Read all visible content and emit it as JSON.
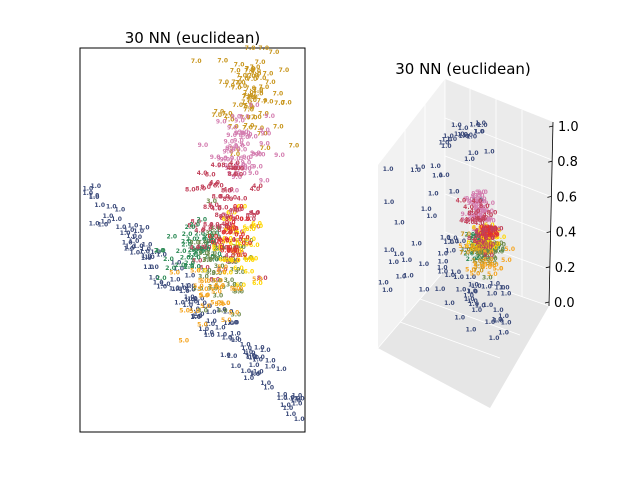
{
  "chart_data": [
    {
      "type": "scatter",
      "title": "30 NN (euclidean)",
      "marker": "text-label",
      "x_ticks_shown": false,
      "y_ticks_shown": false,
      "class_colors": {
        "1.0": "#3b4a7a",
        "2.0": "#2e8b57",
        "3.0": "#6e8a4a",
        "4.0": "#c2415a",
        "5.0": "#f5a623",
        "6.0": "#ffd700",
        "7.0": "#c8961e",
        "8.0": "#c2415a",
        "9.0": "#d47eb0",
        "0.0": "#e03030"
      },
      "clusters": [
        {
          "label": "7.0",
          "cx": 0.76,
          "cy": 0.88,
          "sx": 0.07,
          "sy": 0.07,
          "n": 70
        },
        {
          "label": "9.0",
          "cx": 0.72,
          "cy": 0.73,
          "sx": 0.06,
          "sy": 0.05,
          "n": 55
        },
        {
          "label": "8.0",
          "cx": 0.63,
          "cy": 0.55,
          "sx": 0.08,
          "sy": 0.06,
          "n": 45
        },
        {
          "label": "2.0",
          "cx": 0.52,
          "cy": 0.47,
          "sx": 0.08,
          "sy": 0.04,
          "n": 45
        },
        {
          "label": "3.0",
          "cx": 0.62,
          "cy": 0.4,
          "sx": 0.08,
          "sy": 0.06,
          "n": 40
        },
        {
          "label": "6.0",
          "cx": 0.7,
          "cy": 0.46,
          "sx": 0.06,
          "sy": 0.05,
          "n": 35
        },
        {
          "label": "5.0",
          "cx": 0.62,
          "cy": 0.36,
          "sx": 0.07,
          "sy": 0.05,
          "n": 30
        },
        {
          "label": "0.0",
          "cx": 0.68,
          "cy": 0.51,
          "sx": 0.04,
          "sy": 0.03,
          "n": 25
        },
        {
          "label": "4.0",
          "cx": 0.66,
          "cy": 0.6,
          "sx": 0.09,
          "sy": 0.06,
          "n": 25
        }
      ],
      "arm": {
        "label": "1.0",
        "from": [
          0.02,
          0.63
        ],
        "to": [
          0.98,
          0.05
        ],
        "n": 120,
        "spread": 0.03
      }
    },
    {
      "type": "scatter3d",
      "title": "30 NN (euclidean)",
      "marker": "text-label",
      "z_ticks": [
        "0.0",
        "0.2",
        "0.4",
        "0.6",
        "0.8",
        "1.0"
      ],
      "zlim": [
        0,
        1
      ],
      "clusters": [
        {
          "label": "9.0",
          "cx": 0.62,
          "cy": 0.58,
          "sx": 0.04,
          "sy": 0.06,
          "n": 45
        },
        {
          "label": "2.0",
          "cx": 0.64,
          "cy": 0.45,
          "sx": 0.05,
          "sy": 0.04,
          "n": 35
        },
        {
          "label": "3.0",
          "cx": 0.68,
          "cy": 0.42,
          "sx": 0.05,
          "sy": 0.04,
          "n": 30
        },
        {
          "label": "6.0",
          "cx": 0.66,
          "cy": 0.48,
          "sx": 0.04,
          "sy": 0.03,
          "n": 25
        },
        {
          "label": "5.0",
          "cx": 0.68,
          "cy": 0.4,
          "sx": 0.06,
          "sy": 0.04,
          "n": 20
        },
        {
          "label": "0.0",
          "cx": 0.67,
          "cy": 0.5,
          "sx": 0.03,
          "sy": 0.02,
          "n": 20
        },
        {
          "label": "8.0",
          "cx": 0.62,
          "cy": 0.5,
          "sx": 0.05,
          "sy": 0.05,
          "n": 20
        },
        {
          "label": "4.0",
          "cx": 0.58,
          "cy": 0.55,
          "sx": 0.06,
          "sy": 0.06,
          "n": 15
        },
        {
          "label": "7.0",
          "cx": 0.62,
          "cy": 0.4,
          "sx": 0.05,
          "sy": 0.05,
          "n": 10
        }
      ],
      "scatter1": {
        "label": "1.0",
        "n": 90
      }
    }
  ]
}
